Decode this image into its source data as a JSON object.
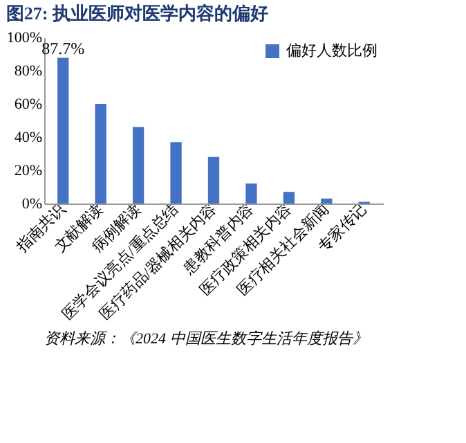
{
  "chart_data": {
    "type": "bar",
    "title": "图27: 执业医师对医学内容的偏好",
    "categories": [
      "指南共识",
      "文献解读",
      "病例解读",
      "医学会议亮点/重点总结",
      "医疗药品/器械相关内容",
      "患教科普内容",
      "医疗政策相关内容",
      "医疗相关社会新闻",
      "专家传记"
    ],
    "series": [
      {
        "name": "偏好人数比例",
        "color": "#4472c4",
        "values": [
          87.7,
          60,
          46,
          37,
          28,
          12,
          7,
          3,
          1
        ],
        "value_labels": [
          "87.7%",
          null,
          null,
          null,
          null,
          null,
          null,
          null,
          null
        ]
      }
    ],
    "ylim": [
      0,
      100
    ],
    "yticks": [
      {
        "value": 0,
        "label": "0%"
      },
      {
        "value": 20,
        "label": "20%"
      },
      {
        "value": 40,
        "label": "40%"
      },
      {
        "value": 60,
        "label": "60%"
      },
      {
        "value": 80,
        "label": "80%"
      },
      {
        "value": 100,
        "label": "100%"
      }
    ],
    "grid": false,
    "legend": "top right",
    "annotations": [
      "资料来源：《2024 中国医生数字生活年度报告》"
    ]
  }
}
